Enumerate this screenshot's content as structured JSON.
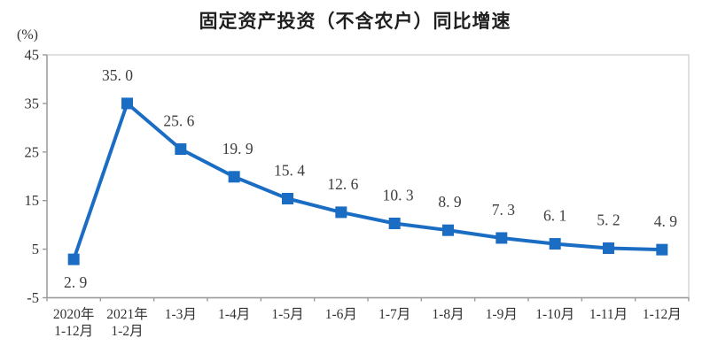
{
  "chart": {
    "title": "固定资产投资（不含农户）同比增速",
    "unit_label": "(%)"
  },
  "chart_data": {
    "type": "line",
    "title": "固定资产投资（不含农户）同比增速",
    "ylabel": "(%)",
    "xlabel": "",
    "grid": false,
    "legend": "none",
    "series_color": "#1B6DC4",
    "marker_shape": "square",
    "axis_color": "#9a9a9a",
    "border_color": "#d2d2d2",
    "text_color": "#333333",
    "ylim": [
      -5,
      45
    ],
    "y_ticks": [
      45,
      35,
      25,
      15,
      5,
      -5
    ],
    "categories": [
      [
        "2020年",
        "1-12月"
      ],
      [
        "2021年",
        "1-2月"
      ],
      [
        "1-3月"
      ],
      [
        "1-4月"
      ],
      [
        "1-5月"
      ],
      [
        "1-6月"
      ],
      [
        "1-7月"
      ],
      [
        "1-8月"
      ],
      [
        "1-9月"
      ],
      [
        "1-10月"
      ],
      [
        "1-11月"
      ],
      [
        "1-12月"
      ]
    ],
    "values": [
      2.9,
      35.0,
      25.6,
      19.9,
      15.4,
      12.6,
      10.3,
      8.9,
      7.3,
      6.1,
      5.2,
      4.9
    ],
    "point_labels": [
      "2. 9",
      "35. 0",
      "25. 6",
      "19. 9",
      "15. 4",
      "12. 6",
      "10. 3",
      "8. 9",
      "7. 3",
      "6. 1",
      "5. 2",
      "4. 9"
    ],
    "label_positions": [
      "below",
      "above",
      "above",
      "above",
      "above",
      "above",
      "above",
      "above",
      "above",
      "above",
      "above",
      "above"
    ],
    "label_dx": [
      2,
      -11,
      -2,
      4,
      2,
      2,
      4,
      2,
      2,
      0,
      0,
      4
    ]
  }
}
